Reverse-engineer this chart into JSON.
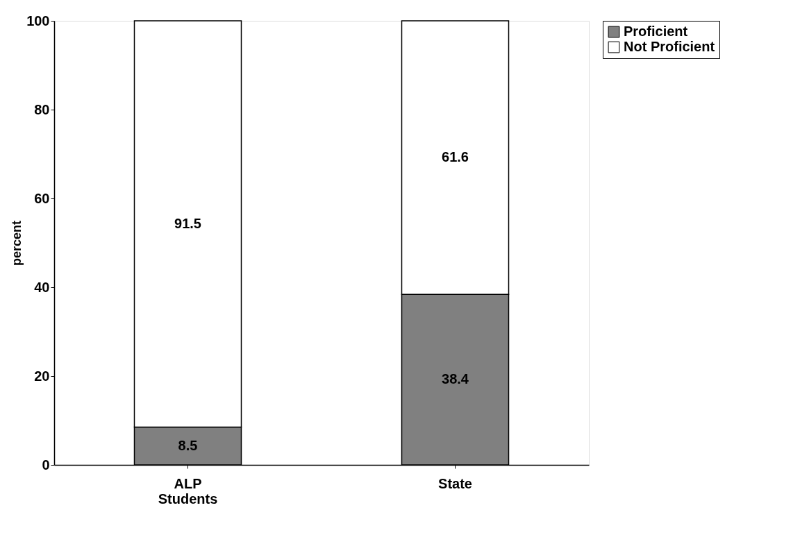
{
  "chart_data": {
    "type": "bar",
    "stacked": true,
    "categories": [
      "ALP Students",
      "State"
    ],
    "ylabel": "percent",
    "ylim": [
      0,
      100
    ],
    "yticks": [
      0,
      20,
      40,
      60,
      80,
      100
    ],
    "grid": false,
    "legend": "right",
    "data_labels": true,
    "series": [
      {
        "name": "Proficient",
        "color": "#808080",
        "values": [
          8.5,
          38.4
        ]
      },
      {
        "name": "Not Proficient",
        "color": "#ffffff",
        "values": [
          91.5,
          61.6
        ]
      }
    ]
  }
}
